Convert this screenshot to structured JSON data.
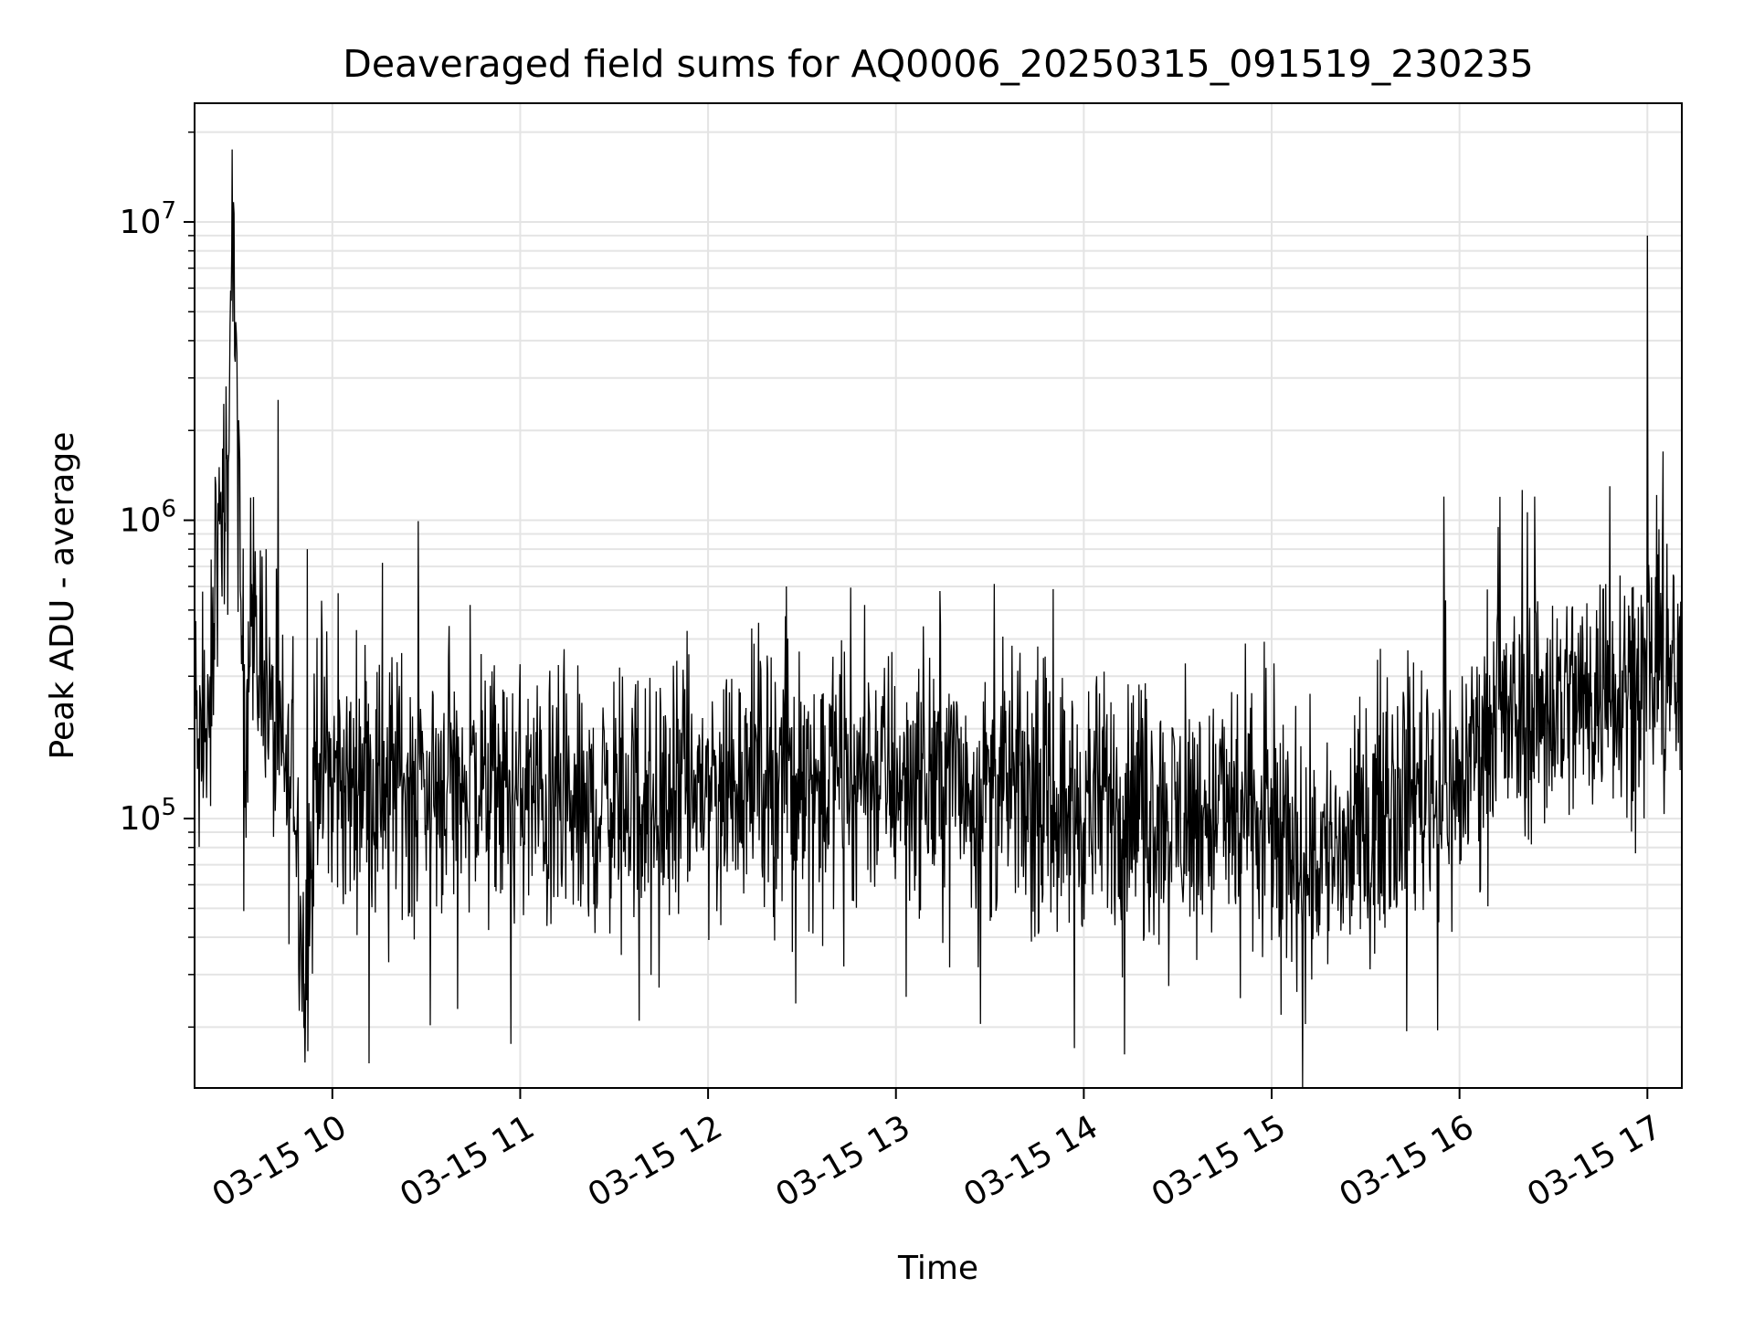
{
  "chart_data": {
    "type": "line",
    "title": "Deaveraged field sums for AQ0006_20250315_091519_230235",
    "xlabel": "Time",
    "ylabel": "Peak ADU - average",
    "y_scale": "log",
    "ylim": [
      12500,
      25000000
    ],
    "xlim": [
      "2025-03-15 09:16",
      "2025-03-15 17:11"
    ],
    "grid": true,
    "x_ticks": [
      {
        "value": "2025-03-15 10:00",
        "label": "03-15 10"
      },
      {
        "value": "2025-03-15 11:00",
        "label": "03-15 11"
      },
      {
        "value": "2025-03-15 12:00",
        "label": "03-15 12"
      },
      {
        "value": "2025-03-15 13:00",
        "label": "03-15 13"
      },
      {
        "value": "2025-03-15 14:00",
        "label": "03-15 14"
      },
      {
        "value": "2025-03-15 15:00",
        "label": "03-15 15"
      },
      {
        "value": "2025-03-15 16:00",
        "label": "03-15 16"
      },
      {
        "value": "2025-03-15 17:00",
        "label": "03-15 17"
      }
    ],
    "y_ticks": [
      {
        "value": 100000,
        "base": "10",
        "exp": "5"
      },
      {
        "value": 1000000,
        "base": "10",
        "exp": "6"
      },
      {
        "value": 10000000,
        "base": "10",
        "exp": "7"
      }
    ],
    "series": [
      {
        "color": "#000000",
        "x": [
          "2025-03-15 09:16",
          "2025-03-15 09:17",
          "2025-03-15 09:18",
          "2025-03-15 09:19",
          "2025-03-15 09:20",
          "2025-03-15 09:21",
          "2025-03-15 09:22",
          "2025-03-15 09:23",
          "2025-03-15 09:24",
          "2025-03-15 09:25",
          "2025-03-15 09:26",
          "2025-03-15 09:27",
          "2025-03-15 09:28",
          "2025-03-15 09:30",
          "2025-03-15 09:32",
          "2025-03-15 09:34",
          "2025-03-15 09:36",
          "2025-03-15 09:38",
          "2025-03-15 09:40",
          "2025-03-15 09:42",
          "2025-03-15 09:44",
          "2025-03-15 09:46",
          "2025-03-15 09:48",
          "2025-03-15 09:51",
          "2025-03-15 09:55",
          "2025-03-15 10:00",
          "2025-03-15 10:05",
          "2025-03-15 10:10",
          "2025-03-15 10:15",
          "2025-03-15 10:20",
          "2025-03-15 10:30",
          "2025-03-15 10:40",
          "2025-03-15 10:45",
          "2025-03-15 10:50",
          "2025-03-15 11:00",
          "2025-03-15 11:10",
          "2025-03-15 11:20",
          "2025-03-15 11:30",
          "2025-03-15 11:39",
          "2025-03-15 11:45",
          "2025-03-15 12:00",
          "2025-03-15 12:15",
          "2025-03-15 12:30",
          "2025-03-15 12:45",
          "2025-03-15 13:00",
          "2025-03-15 13:15",
          "2025-03-15 13:28",
          "2025-03-15 13:45",
          "2025-03-15 13:55",
          "2025-03-15 14:05",
          "2025-03-15 14:13",
          "2025-03-15 14:30",
          "2025-03-15 14:45",
          "2025-03-15 15:00",
          "2025-03-15 15:10",
          "2025-03-15 15:20",
          "2025-03-15 15:30",
          "2025-03-15 15:40",
          "2025-03-15 15:50",
          "2025-03-15 15:54",
          "2025-03-15 15:56",
          "2025-03-15 15:58",
          "2025-03-15 16:00",
          "2025-03-15 16:05",
          "2025-03-15 16:10",
          "2025-03-15 16:15",
          "2025-03-15 16:20",
          "2025-03-15 16:30",
          "2025-03-15 16:40",
          "2025-03-15 16:50",
          "2025-03-15 17:00",
          "2025-03-15 17:05",
          "2025-03-15 17:11"
        ],
        "y": [
          250000,
          170000,
          130000,
          280000,
          130000,
          210000,
          380000,
          1100000,
          700000,
          1500000,
          900000,
          1200000,
          17500000,
          1000000,
          200000,
          600000,
          300000,
          450000,
          200000,
          180000,
          160000,
          120000,
          140000,
          28000,
          180000,
          140000,
          120000,
          160000,
          130000,
          140000,
          130000,
          140000,
          130000,
          120000,
          120000,
          110000,
          100000,
          120000,
          120000,
          110000,
          130000,
          150000,
          140000,
          140000,
          140000,
          140000,
          130000,
          120000,
          110000,
          110000,
          115000,
          100000,
          105000,
          90000,
          80000,
          75000,
          90000,
          130000,
          130000,
          130000,
          140000,
          110000,
          130000,
          180000,
          200000,
          200000,
          220000,
          250000,
          250000,
          300000,
          300000,
          320000,
          280000
        ],
        "noise_spikes_high": [
          [
            "2025-03-15 09:27",
            1700000
          ],
          [
            "2025-03-15 09:52",
            800000
          ],
          [
            "2025-03-15 10:16",
            720000
          ],
          [
            "2025-03-15 10:44",
            520000
          ],
          [
            "2025-03-15 12:25",
            600000
          ],
          [
            "2025-03-15 12:50",
            520000
          ],
          [
            "2025-03-15 15:55",
            1200000
          ],
          [
            "2025-03-15 16:24",
            1200000
          ],
          [
            "2025-03-15 16:48",
            1300000
          ],
          [
            "2025-03-15 17:00",
            9000000
          ],
          [
            "2025-03-15 17:05",
            1700000
          ]
        ],
        "noise_spikes_low": [
          [
            "2025-03-15 09:51",
            28000
          ],
          [
            "2025-03-15 10:18",
            33000
          ],
          [
            "2025-03-15 10:40",
            23000
          ],
          [
            "2025-03-15 11:38",
            21000
          ],
          [
            "2025-03-15 12:28",
            24000
          ],
          [
            "2025-03-15 13:27",
            20500
          ],
          [
            "2025-03-15 13:57",
            17000
          ],
          [
            "2025-03-15 14:13",
            16200
          ],
          [
            "2025-03-15 14:50",
            25000
          ],
          [
            "2025-03-15 15:03",
            22000
          ],
          [
            "2025-03-15 15:53",
            19500
          ]
        ]
      }
    ]
  }
}
